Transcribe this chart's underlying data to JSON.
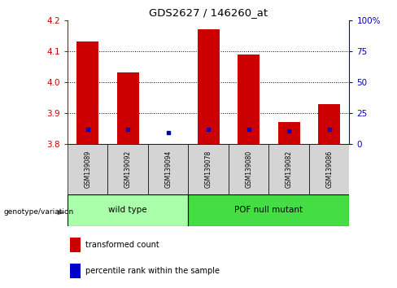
{
  "title": "GDS2627 / 146260_at",
  "samples": [
    "GSM139089",
    "GSM139092",
    "GSM139094",
    "GSM139078",
    "GSM139080",
    "GSM139082",
    "GSM139086"
  ],
  "transformed_counts": [
    4.13,
    4.03,
    3.801,
    4.17,
    4.09,
    3.87,
    3.93
  ],
  "percentile_ranks": [
    3.848,
    3.848,
    3.838,
    3.847,
    3.848,
    3.843,
    3.846
  ],
  "base_value": 3.8,
  "ylim_left": [
    3.8,
    4.2
  ],
  "ylim_right": [
    0,
    100
  ],
  "yticks_left": [
    3.8,
    3.9,
    4.0,
    4.1,
    4.2
  ],
  "yticks_right": [
    0,
    25,
    50,
    75,
    100
  ],
  "ytick_right_labels": [
    "0",
    "25",
    "50",
    "75",
    "100%"
  ],
  "groups": [
    {
      "label": "wild type",
      "indices": [
        0,
        1,
        2
      ],
      "color": "#aaffaa"
    },
    {
      "label": "POF null mutant",
      "indices": [
        3,
        4,
        5,
        6
      ],
      "color": "#44dd44"
    }
  ],
  "bar_color": "#cc0000",
  "blue_color": "#0000cc",
  "bar_width": 0.55,
  "genotype_label": "genotype/variation",
  "legend_items": [
    {
      "label": "transformed count",
      "color": "#cc0000"
    },
    {
      "label": "percentile rank within the sample",
      "color": "#0000cc"
    }
  ],
  "left_tick_color": "#cc0000",
  "right_tick_color": "#0000bb"
}
